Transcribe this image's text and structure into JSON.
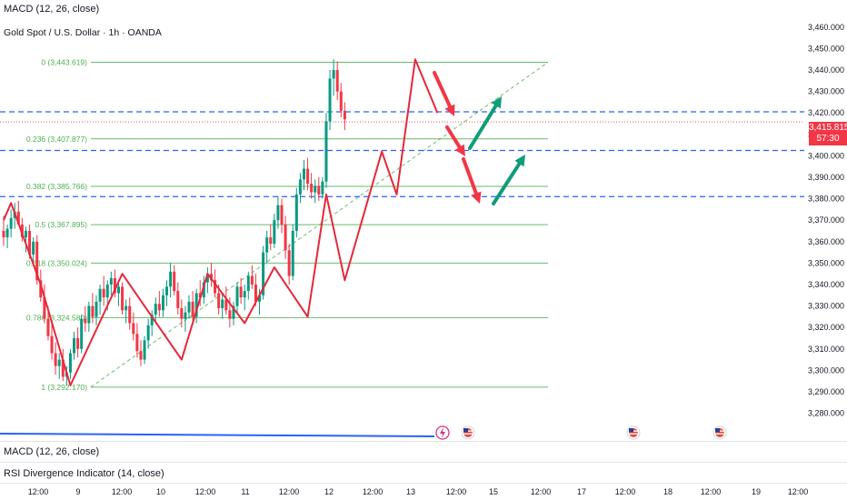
{
  "header": {
    "indicator_top": "MACD (12, 26, close)",
    "symbol_title": "Gold Spot / U.S. Dollar · 1h · OANDA"
  },
  "panes": {
    "macd_label": "MACD (12, 26, close)",
    "rsi_label": "RSI Divergence Indicator (14, close)"
  },
  "price_tag": {
    "price": "3,415.815",
    "countdown": "57:30"
  },
  "colors": {
    "up": "#089981",
    "down": "#f23645",
    "fib": "#4caf50",
    "level": "#2962ff",
    "zigzag": "#e5283a",
    "arrow_green": "#0f9d78",
    "bg": "#ffffff"
  },
  "chart_data": {
    "type": "candlestick",
    "title": "Gold Spot / U.S. Dollar · 1h · OANDA",
    "ylim": [
      3275,
      3465
    ],
    "y_ticks": [
      "3,460.000",
      "3,450.000",
      "3,440.000",
      "3,430.000",
      "3,420.000",
      "3,410.000",
      "3,400.000",
      "3,390.000",
      "3,380.000",
      "3,370.000",
      "3,360.000",
      "3,350.000",
      "3,340.000",
      "3,330.000",
      "3,320.000",
      "3,310.000",
      "3,300.000",
      "3,290.000",
      "3,280.000"
    ],
    "x_ticks": [
      "12:00",
      "9",
      "12:00",
      "10",
      "12:00",
      "11",
      "12:00",
      "12",
      "12:00",
      "13",
      "12:00",
      "15",
      "12:00",
      "17",
      "12:00",
      "18",
      "12:00",
      "19",
      "12:00"
    ],
    "fib_levels": [
      {
        "label": "0 (3,443.619)",
        "value": 3443.619
      },
      {
        "label": "0.236 (3,407.877)",
        "value": 3407.877
      },
      {
        "label": "0.382 (3,385.766)",
        "value": 3385.766
      },
      {
        "label": "0.5 (3,367.895)",
        "value": 3367.895
      },
      {
        "label": "0.618 (3,350.024)",
        "value": 3350.024
      },
      {
        "label": "0.786 (3,324.580)",
        "value": 3324.58
      },
      {
        "label": "1 (3,292.170)",
        "value": 3292.17
      }
    ],
    "horizontal_levels": [
      3420.5,
      3402.5,
      3381.0
    ],
    "current_price": 3415.815,
    "zigzag": [
      [
        0,
        3370
      ],
      [
        2,
        3378
      ],
      [
        10,
        3340
      ],
      [
        18,
        3293
      ],
      [
        32,
        3345
      ],
      [
        40,
        3325
      ],
      [
        48,
        3305
      ],
      [
        55,
        3345
      ],
      [
        65,
        3322
      ],
      [
        73,
        3348
      ],
      [
        82,
        3325
      ],
      [
        87,
        3382
      ],
      [
        92,
        3342
      ],
      [
        102,
        3402
      ],
      [
        106,
        3382
      ],
      [
        111,
        3445
      ],
      [
        117,
        3420
      ]
    ],
    "candles_ohlc": [
      [
        3365,
        3372,
        3358,
        3362
      ],
      [
        3362,
        3368,
        3357,
        3366
      ],
      [
        3366,
        3375,
        3362,
        3371
      ],
      [
        3371,
        3378,
        3366,
        3374
      ],
      [
        3374,
        3379,
        3368,
        3368
      ],
      [
        3368,
        3371,
        3360,
        3362
      ],
      [
        3362,
        3367,
        3355,
        3365
      ],
      [
        3365,
        3368,
        3352,
        3354
      ],
      [
        3354,
        3362,
        3350,
        3360
      ],
      [
        3360,
        3363,
        3340,
        3342
      ],
      [
        3342,
        3347,
        3332,
        3334
      ],
      [
        3334,
        3340,
        3322,
        3324
      ],
      [
        3324,
        3330,
        3314,
        3316
      ],
      [
        3316,
        3322,
        3305,
        3308
      ],
      [
        3308,
        3313,
        3298,
        3302
      ],
      [
        3302,
        3308,
        3296,
        3305
      ],
      [
        3305,
        3310,
        3295,
        3297
      ],
      [
        3297,
        3302,
        3293,
        3299
      ],
      [
        3299,
        3310,
        3296,
        3308
      ],
      [
        3308,
        3318,
        3305,
        3315
      ],
      [
        3315,
        3320,
        3306,
        3310
      ],
      [
        3310,
        3326,
        3308,
        3324
      ],
      [
        3324,
        3330,
        3318,
        3322
      ],
      [
        3322,
        3332,
        3318,
        3330
      ],
      [
        3330,
        3336,
        3322,
        3325
      ],
      [
        3325,
        3335,
        3321,
        3332
      ],
      [
        3332,
        3340,
        3326,
        3338
      ],
      [
        3338,
        3344,
        3330,
        3334
      ],
      [
        3334,
        3342,
        3328,
        3340
      ],
      [
        3340,
        3346,
        3335,
        3343
      ],
      [
        3343,
        3347,
        3334,
        3336
      ],
      [
        3336,
        3342,
        3330,
        3339
      ],
      [
        3339,
        3341,
        3326,
        3328
      ],
      [
        3328,
        3333,
        3322,
        3330
      ],
      [
        3330,
        3334,
        3319,
        3322
      ],
      [
        3322,
        3327,
        3314,
        3317
      ],
      [
        3317,
        3322,
        3306,
        3309
      ],
      [
        3309,
        3314,
        3302,
        3305
      ],
      [
        3305,
        3316,
        3303,
        3314
      ],
      [
        3314,
        3324,
        3310,
        3321
      ],
      [
        3321,
        3328,
        3316,
        3326
      ],
      [
        3326,
        3334,
        3322,
        3331
      ],
      [
        3331,
        3337,
        3325,
        3328
      ],
      [
        3328,
        3338,
        3325,
        3335
      ],
      [
        3335,
        3342,
        3330,
        3339
      ],
      [
        3339,
        3350,
        3334,
        3346
      ],
      [
        3346,
        3349,
        3335,
        3337
      ],
      [
        3337,
        3341,
        3326,
        3329
      ],
      [
        3329,
        3333,
        3320,
        3324
      ],
      [
        3324,
        3330,
        3318,
        3327
      ],
      [
        3327,
        3335,
        3324,
        3332
      ],
      [
        3332,
        3337,
        3322,
        3325
      ],
      [
        3325,
        3338,
        3322,
        3336
      ],
      [
        3336,
        3342,
        3330,
        3334
      ],
      [
        3334,
        3344,
        3331,
        3341
      ],
      [
        3341,
        3348,
        3336,
        3345
      ],
      [
        3345,
        3350,
        3339,
        3342
      ],
      [
        3342,
        3347,
        3334,
        3336
      ],
      [
        3336,
        3340,
        3326,
        3329
      ],
      [
        3329,
        3336,
        3324,
        3333
      ],
      [
        3333,
        3339,
        3326,
        3328
      ],
      [
        3328,
        3334,
        3320,
        3324
      ],
      [
        3324,
        3332,
        3321,
        3330
      ],
      [
        3330,
        3341,
        3326,
        3339
      ],
      [
        3339,
        3343,
        3331,
        3334
      ],
      [
        3334,
        3340,
        3328,
        3337
      ],
      [
        3337,
        3346,
        3333,
        3344
      ],
      [
        3344,
        3349,
        3338,
        3340
      ],
      [
        3340,
        3345,
        3330,
        3332
      ],
      [
        3332,
        3338,
        3326,
        3335
      ],
      [
        3335,
        3358,
        3333,
        3355
      ],
      [
        3355,
        3365,
        3350,
        3362
      ],
      [
        3362,
        3368,
        3356,
        3359
      ],
      [
        3359,
        3373,
        3357,
        3370
      ],
      [
        3370,
        3381,
        3366,
        3377
      ],
      [
        3377,
        3380,
        3364,
        3368
      ],
      [
        3368,
        3372,
        3352,
        3356
      ],
      [
        3356,
        3359,
        3340,
        3344
      ],
      [
        3344,
        3368,
        3342,
        3365
      ],
      [
        3365,
        3385,
        3362,
        3382
      ],
      [
        3382,
        3392,
        3378,
        3389
      ],
      [
        3389,
        3398,
        3384,
        3394
      ],
      [
        3394,
        3399,
        3384,
        3387
      ],
      [
        3387,
        3392,
        3380,
        3383
      ],
      [
        3383,
        3389,
        3378,
        3386
      ],
      [
        3386,
        3390,
        3379,
        3382
      ],
      [
        3382,
        3390,
        3380,
        3388
      ],
      [
        3388,
        3420,
        3385,
        3416
      ],
      [
        3416,
        3440,
        3412,
        3436
      ],
      [
        3436,
        3445,
        3428,
        3440
      ],
      [
        3440,
        3444,
        3426,
        3430
      ],
      [
        3430,
        3434,
        3418,
        3421
      ],
      [
        3421,
        3425,
        3412,
        3417
      ]
    ]
  }
}
